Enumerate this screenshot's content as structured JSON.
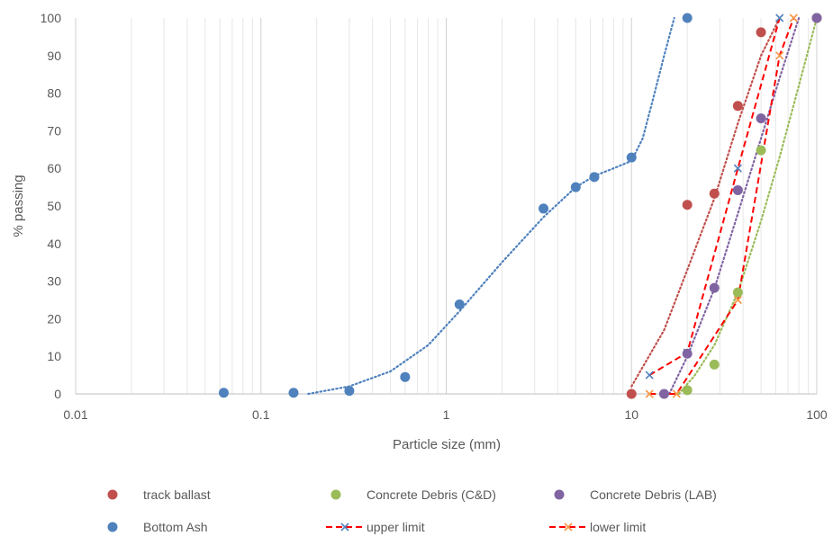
{
  "chart_data": {
    "type": "scatter",
    "x_scale": "log",
    "xlim": [
      0.01,
      100
    ],
    "ylim": [
      0,
      100
    ],
    "xlabel": "Particle size (mm)",
    "ylabel": "% passing",
    "x_tick_labels": [
      "0.01",
      "0.1",
      "1",
      "10",
      "100"
    ],
    "y_tick_labels": [
      "0",
      "10",
      "20",
      "30",
      "40",
      "50",
      "60",
      "70",
      "80",
      "90",
      "100"
    ],
    "grid": "vertical log gridlines",
    "legend_position": "bottom",
    "series": [
      {
        "name": "track ballast",
        "color": "#c0504d",
        "marker": "circle",
        "trendline": "dotted",
        "points": [
          [
            10,
            0
          ],
          [
            20,
            50.3
          ],
          [
            28,
            53.3
          ],
          [
            37.5,
            76.6
          ],
          [
            50,
            96.2
          ],
          [
            100,
            100
          ]
        ],
        "trend": [
          [
            10,
            2
          ],
          [
            15,
            17
          ],
          [
            20,
            33
          ],
          [
            28,
            52
          ],
          [
            37.5,
            72
          ],
          [
            50,
            90
          ],
          [
            63,
            100
          ]
        ]
      },
      {
        "name": "Concrete Debris (C&D)",
        "color": "#9bbb59",
        "marker": "circle",
        "trendline": "dotted",
        "points": [
          [
            20,
            1
          ],
          [
            28,
            7.8
          ],
          [
            37.5,
            27
          ],
          [
            50,
            64.8
          ],
          [
            100,
            100
          ]
        ],
        "trend": [
          [
            18,
            0
          ],
          [
            22,
            5
          ],
          [
            28,
            13
          ],
          [
            37.5,
            27
          ],
          [
            50,
            46
          ],
          [
            63,
            63
          ],
          [
            80,
            82
          ],
          [
            100,
            100
          ]
        ]
      },
      {
        "name": "Concrete Debris (LAB)",
        "color": "#8064a2",
        "marker": "circle",
        "trendline": "dotted",
        "points": [
          [
            15,
            0
          ],
          [
            20,
            10.7
          ],
          [
            28,
            28.2
          ],
          [
            37.5,
            54.2
          ],
          [
            50,
            73.3
          ],
          [
            100,
            100
          ]
        ],
        "trend": [
          [
            16,
            0
          ],
          [
            20,
            10
          ],
          [
            28,
            28
          ],
          [
            37.5,
            48
          ],
          [
            50,
            68
          ],
          [
            63,
            84
          ],
          [
            80,
            100
          ]
        ]
      },
      {
        "name": "Bottom Ash",
        "color": "#4f81bd",
        "marker": "circle",
        "trendline": "dotted",
        "points": [
          [
            0.063,
            0.3
          ],
          [
            0.15,
            0.3
          ],
          [
            0.3,
            0.8
          ],
          [
            0.6,
            4.5
          ],
          [
            1.18,
            23.8
          ],
          [
            3.35,
            49.3
          ],
          [
            5,
            55
          ],
          [
            6.3,
            57.7
          ],
          [
            10,
            62.9
          ],
          [
            20,
            100
          ]
        ],
        "trend": [
          [
            0.18,
            0
          ],
          [
            0.3,
            2
          ],
          [
            0.5,
            6
          ],
          [
            0.8,
            13
          ],
          [
            1.18,
            22
          ],
          [
            2,
            35
          ],
          [
            3.35,
            47
          ],
          [
            5,
            55
          ],
          [
            6.3,
            58
          ],
          [
            8,
            60
          ],
          [
            10,
            62
          ],
          [
            11.5,
            68
          ],
          [
            13,
            78
          ],
          [
            15,
            90
          ],
          [
            17,
            100
          ]
        ]
      },
      {
        "name": "upper limit",
        "color": "#ff0000",
        "line": "dashed",
        "marker": "x",
        "marker_color": "#4f81bd",
        "points": [
          [
            12.5,
            5
          ],
          [
            20,
            11
          ],
          [
            37.5,
            60
          ],
          [
            63,
            100
          ]
        ]
      },
      {
        "name": "lower limit",
        "color": "#ff0000",
        "line": "dashed",
        "marker": "x",
        "marker_color": "#f79646",
        "points": [
          [
            12.5,
            0
          ],
          [
            17.5,
            0
          ],
          [
            37.5,
            25
          ],
          [
            63,
            90
          ],
          [
            75,
            100
          ]
        ]
      }
    ]
  }
}
